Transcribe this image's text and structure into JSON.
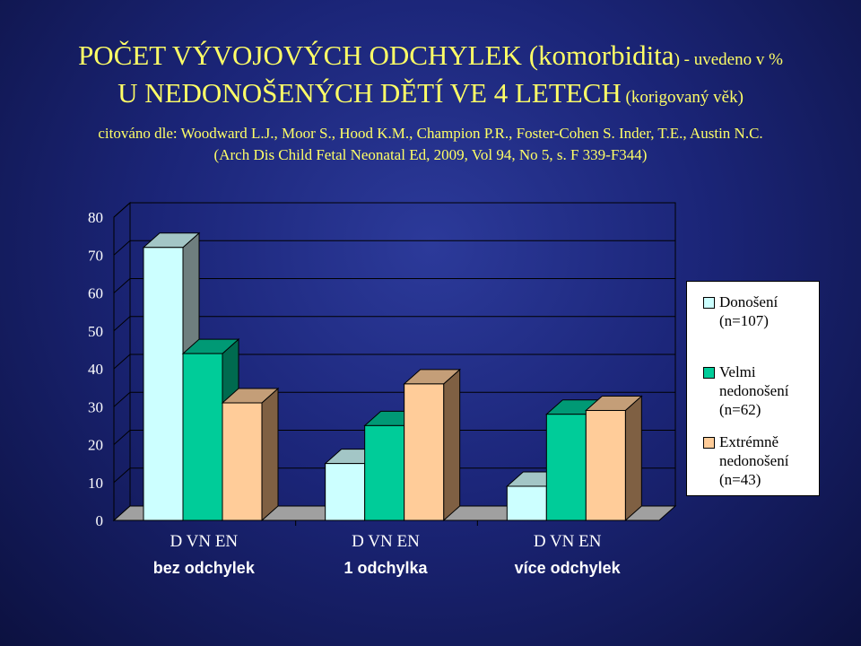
{
  "title": {
    "line1_main": "POČET VÝVOJOVÝCH ODCHYLEK (komorbidita",
    "line1_suffix": ") - uvedeno v %",
    "line2_main": "U  NEDONOŠENÝCH DĚTÍ VE  4  LETECH",
    "line2_suffix": " (korigovaný věk)"
  },
  "citation": {
    "line1": "citováno  dle:  Woodward L.J., Moor S., Hood K.M., Champion P.R., Foster-Cohen S. Inder, T.E., Austin N.C.",
    "line2": "(Arch Dis Child Fetal Neonatal Ed, 2009, Vol 94, No 5, s. F 339-F344)"
  },
  "chart_data": {
    "type": "bar",
    "categories": [
      "bez odchylek",
      "1 odchylka",
      "více odchylek"
    ],
    "category_sublabels": [
      "D   VN   EN",
      "D   VN   EN",
      "D   VN   EN"
    ],
    "series": [
      {
        "name": "Donošení (n=107)",
        "values": [
          72,
          15,
          9
        ],
        "color": "#ccffff",
        "side_color": "#6f7f7f",
        "top_color": "#a3c6c6"
      },
      {
        "name": "Velmi nedonošení (n=62)",
        "values": [
          44,
          25,
          28
        ],
        "color": "#00cc99",
        "side_color": "#006a4f",
        "top_color": "#009975"
      },
      {
        "name": "Extrémně nedonošení (n=43)",
        "values": [
          31,
          36,
          29
        ],
        "color": "#ffcc99",
        "side_color": "#7f6043",
        "top_color": "#c49e78"
      }
    ],
    "ylim": [
      0,
      80
    ],
    "yticks": [
      "0",
      "10",
      "20",
      "30",
      "40",
      "50",
      "60",
      "70",
      "80"
    ],
    "grid": true,
    "legend": "right"
  },
  "legend": {
    "items": [
      {
        "lines": [
          "Donošení",
          "(n=107)"
        ],
        "color": "#ccffff"
      },
      {
        "lines": [
          "Velmi",
          "nedonošení",
          "(n=62)"
        ],
        "color": "#00cc99"
      },
      {
        "lines": [
          "Extrémně",
          "nedonošení",
          "(n=43)"
        ],
        "color": "#ffcc99"
      }
    ]
  }
}
